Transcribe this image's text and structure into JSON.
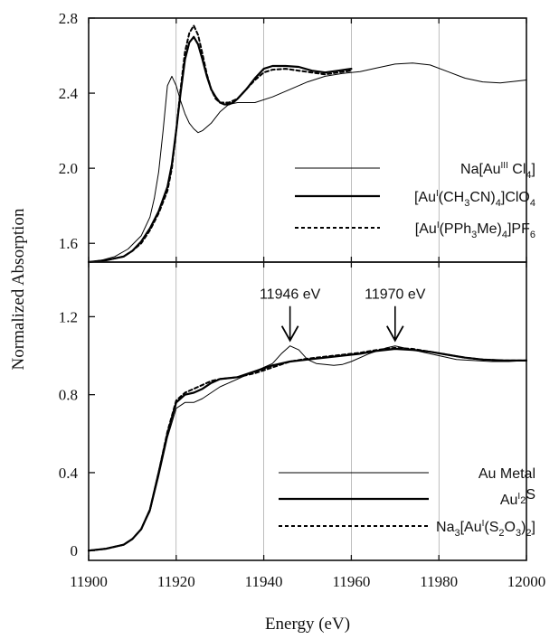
{
  "chart_data": {
    "type": "line",
    "xlabel": "Energy (eV)",
    "ylabel": "Normalized Absorption",
    "xlim": [
      11900,
      12000
    ],
    "x_ticks": [
      "11900",
      "11920",
      "11940",
      "11960",
      "11980",
      "12000"
    ],
    "grid": false,
    "panels": [
      {
        "name": "top",
        "ylim": [
          1.5,
          2.8
        ],
        "y_ticks": [
          "1.6",
          "2.0",
          "2.4",
          "2.8"
        ],
        "legend_position": "middle-right",
        "series": [
          {
            "name_parts": [
              "Na[Au",
              "III",
              " Cl",
              "4",
              "]"
            ],
            "style": "thin",
            "points": [
              [
                11900,
                1.5
              ],
              [
                11903,
                1.51
              ],
              [
                11906,
                1.53
              ],
              [
                11909,
                1.57
              ],
              [
                11912,
                1.64
              ],
              [
                11914,
                1.74
              ],
              [
                11915,
                1.84
              ],
              [
                11916,
                1.98
              ],
              [
                11917,
                2.2
              ],
              [
                11918,
                2.44
              ],
              [
                11919,
                2.49
              ],
              [
                11920,
                2.44
              ],
              [
                11921,
                2.36
              ],
              [
                11922,
                2.29
              ],
              [
                11923,
                2.24
              ],
              [
                11924,
                2.21
              ],
              [
                11925,
                2.19
              ],
              [
                11926,
                2.2
              ],
              [
                11928,
                2.24
              ],
              [
                11930,
                2.3
              ],
              [
                11932,
                2.34
              ],
              [
                11934,
                2.35
              ],
              [
                11938,
                2.35
              ],
              [
                11942,
                2.38
              ],
              [
                11946,
                2.42
              ],
              [
                11950,
                2.46
              ],
              [
                11954,
                2.49
              ],
              [
                11958,
                2.505
              ],
              [
                11962,
                2.515
              ],
              [
                11966,
                2.535
              ],
              [
                11970,
                2.555
              ],
              [
                11974,
                2.56
              ],
              [
                11978,
                2.55
              ],
              [
                11982,
                2.515
              ],
              [
                11986,
                2.48
              ],
              [
                11990,
                2.46
              ],
              [
                11994,
                2.455
              ],
              [
                11998,
                2.465
              ],
              [
                12000,
                2.47
              ]
            ]
          },
          {
            "name_parts": [
              "[Au",
              "I",
              "(CH",
              "3",
              "CN)",
              "4",
              "]ClO",
              "4"
            ],
            "style": "thick",
            "points": [
              [
                11900,
                1.5
              ],
              [
                11904,
                1.51
              ],
              [
                11908,
                1.53
              ],
              [
                11910,
                1.56
              ],
              [
                11912,
                1.61
              ],
              [
                11914,
                1.68
              ],
              [
                11916,
                1.77
              ],
              [
                11918,
                1.9
              ],
              [
                11919,
                2.02
              ],
              [
                11920,
                2.2
              ],
              [
                11921,
                2.4
              ],
              [
                11922,
                2.58
              ],
              [
                11923,
                2.67
              ],
              [
                11924,
                2.7
              ],
              [
                11925,
                2.66
              ],
              [
                11926,
                2.58
              ],
              [
                11927,
                2.49
              ],
              [
                11928,
                2.42
              ],
              [
                11929,
                2.38
              ],
              [
                11930,
                2.35
              ],
              [
                11931,
                2.34
              ],
              [
                11932,
                2.34
              ],
              [
                11933,
                2.35
              ],
              [
                11934,
                2.37
              ],
              [
                11936,
                2.42
              ],
              [
                11938,
                2.48
              ],
              [
                11940,
                2.53
              ],
              [
                11942,
                2.545
              ],
              [
                11945,
                2.545
              ],
              [
                11948,
                2.54
              ],
              [
                11951,
                2.52
              ],
              [
                11954,
                2.51
              ],
              [
                11957,
                2.52
              ],
              [
                11960,
                2.53
              ]
            ]
          },
          {
            "name_parts": [
              "[Au",
              "I",
              "(PPh",
              "3",
              "Me)",
              "4",
              "]PF",
              "6"
            ],
            "style": "dashed",
            "points": [
              [
                11900,
                1.5
              ],
              [
                11904,
                1.51
              ],
              [
                11908,
                1.53
              ],
              [
                11910,
                1.56
              ],
              [
                11912,
                1.6
              ],
              [
                11914,
                1.67
              ],
              [
                11916,
                1.76
              ],
              [
                11918,
                1.88
              ],
              [
                11919,
                2.0
              ],
              [
                11920,
                2.2
              ],
              [
                11921,
                2.42
              ],
              [
                11922,
                2.62
              ],
              [
                11923,
                2.72
              ],
              [
                11924,
                2.76
              ],
              [
                11925,
                2.71
              ],
              [
                11926,
                2.61
              ],
              [
                11927,
                2.5
              ],
              [
                11928,
                2.42
              ],
              [
                11929,
                2.37
              ],
              [
                11930,
                2.35
              ],
              [
                11932,
                2.35
              ],
              [
                11934,
                2.37
              ],
              [
                11936,
                2.42
              ],
              [
                11938,
                2.47
              ],
              [
                11940,
                2.51
              ],
              [
                11942,
                2.525
              ],
              [
                11945,
                2.53
              ],
              [
                11948,
                2.52
              ],
              [
                11951,
                2.51
              ],
              [
                11954,
                2.5
              ],
              [
                11957,
                2.51
              ],
              [
                11960,
                2.52
              ]
            ]
          }
        ]
      },
      {
        "name": "bottom",
        "ylim": [
          -0.05,
          1.48
        ],
        "y_ticks": [
          "0",
          "0.4",
          "0.8",
          "1.2"
        ],
        "legend_position": "bottom-right",
        "annotations": [
          {
            "text": "11946 eV",
            "x": 11946,
            "y": 1.05
          },
          {
            "text": "11970 eV",
            "x": 11970,
            "y": 1.05
          }
        ],
        "series": [
          {
            "name_parts": [
              "Au Metal"
            ],
            "style": "thin",
            "points": [
              [
                11900,
                0.0
              ],
              [
                11904,
                0.01
              ],
              [
                11908,
                0.03
              ],
              [
                11910,
                0.06
              ],
              [
                11912,
                0.11
              ],
              [
                11914,
                0.2
              ],
              [
                11916,
                0.38
              ],
              [
                11918,
                0.58
              ],
              [
                11920,
                0.73
              ],
              [
                11922,
                0.76
              ],
              [
                11924,
                0.76
              ],
              [
                11926,
                0.78
              ],
              [
                11928,
                0.81
              ],
              [
                11930,
                0.84
              ],
              [
                11932,
                0.86
              ],
              [
                11934,
                0.88
              ],
              [
                11936,
                0.9
              ],
              [
                11938,
                0.92
              ],
              [
                11940,
                0.94
              ],
              [
                11942,
                0.96
              ],
              [
                11944,
                1.01
              ],
              [
                11946,
                1.05
              ],
              [
                11948,
                1.03
              ],
              [
                11950,
                0.98
              ],
              [
                11952,
                0.96
              ],
              [
                11954,
                0.955
              ],
              [
                11956,
                0.95
              ],
              [
                11958,
                0.955
              ],
              [
                11960,
                0.97
              ],
              [
                11964,
                1.01
              ],
              [
                11968,
                1.04
              ],
              [
                11970,
                1.05
              ],
              [
                11972,
                1.04
              ],
              [
                11976,
                1.02
              ],
              [
                11980,
                1.0
              ],
              [
                11984,
                0.98
              ],
              [
                11988,
                0.975
              ],
              [
                11992,
                0.97
              ],
              [
                11996,
                0.97
              ],
              [
                12000,
                0.975
              ]
            ]
          },
          {
            "name_parts": [
              "Au",
              "I",
              "2",
              "S"
            ],
            "style": "thick",
            "points": [
              [
                11900,
                0.0
              ],
              [
                11904,
                0.01
              ],
              [
                11908,
                0.03
              ],
              [
                11910,
                0.06
              ],
              [
                11912,
                0.11
              ],
              [
                11914,
                0.21
              ],
              [
                11916,
                0.4
              ],
              [
                11918,
                0.6
              ],
              [
                11920,
                0.76
              ],
              [
                11922,
                0.8
              ],
              [
                11924,
                0.81
              ],
              [
                11926,
                0.83
              ],
              [
                11928,
                0.86
              ],
              [
                11930,
                0.88
              ],
              [
                11934,
                0.89
              ],
              [
                11938,
                0.92
              ],
              [
                11942,
                0.95
              ],
              [
                11946,
                0.97
              ],
              [
                11950,
                0.98
              ],
              [
                11954,
                0.99
              ],
              [
                11958,
                1.0
              ],
              [
                11962,
                1.01
              ],
              [
                11966,
                1.025
              ],
              [
                11970,
                1.035
              ],
              [
                11974,
                1.03
              ],
              [
                11978,
                1.02
              ],
              [
                11982,
                1.005
              ],
              [
                11986,
                0.99
              ],
              [
                11990,
                0.98
              ],
              [
                11995,
                0.975
              ],
              [
                12000,
                0.975
              ]
            ]
          },
          {
            "name_parts": [
              "Na",
              "3",
              "[Au",
              "I",
              "(S",
              "2",
              "O",
              "3",
              ")",
              "2",
              "]"
            ],
            "style": "dashed",
            "points": [
              [
                11900,
                0.0
              ],
              [
                11904,
                0.01
              ],
              [
                11908,
                0.03
              ],
              [
                11910,
                0.06
              ],
              [
                11912,
                0.11
              ],
              [
                11914,
                0.21
              ],
              [
                11916,
                0.4
              ],
              [
                11918,
                0.61
              ],
              [
                11920,
                0.77
              ],
              [
                11922,
                0.81
              ],
              [
                11924,
                0.83
              ],
              [
                11926,
                0.85
              ],
              [
                11928,
                0.87
              ],
              [
                11930,
                0.88
              ],
              [
                11934,
                0.89
              ],
              [
                11938,
                0.91
              ],
              [
                11942,
                0.94
              ],
              [
                11946,
                0.97
              ],
              [
                11950,
                0.985
              ],
              [
                11954,
                0.995
              ],
              [
                11958,
                1.005
              ],
              [
                11962,
                1.015
              ],
              [
                11966,
                1.03
              ],
              [
                11970,
                1.04
              ],
              [
                11974,
                1.035
              ],
              [
                11978,
                1.02
              ],
              [
                11982,
                1.005
              ],
              [
                11986,
                0.99
              ],
              [
                11990,
                0.98
              ],
              [
                11995,
                0.975
              ],
              [
                12000,
                0.975
              ]
            ]
          }
        ]
      }
    ]
  }
}
